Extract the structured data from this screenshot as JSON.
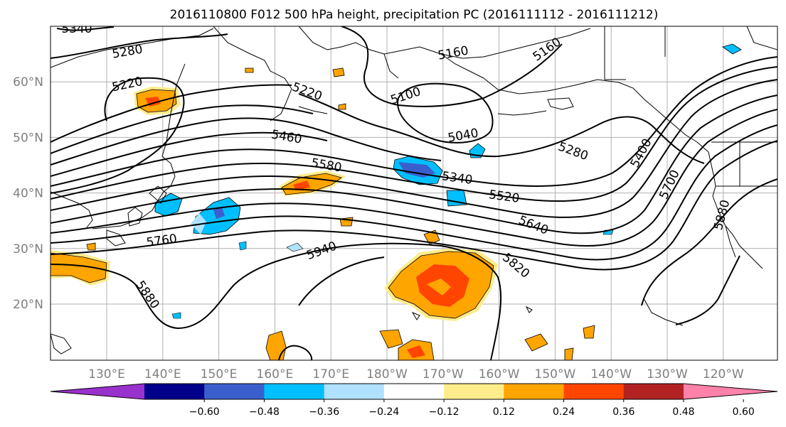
{
  "title": "2016110800 F012 500 hPa height, precipitation PC (2016111112 - 2016111212)",
  "axes": {
    "lon_labels": [
      "130°E",
      "140°E",
      "150°E",
      "160°E",
      "170°E",
      "180°W",
      "170°W",
      "160°W",
      "150°W",
      "140°W",
      "130°W",
      "120°W"
    ],
    "lat_labels": [
      "20°N",
      "30°N",
      "40°N",
      "50°N",
      "60°N"
    ]
  },
  "contour_labels": [
    "5340",
    "5280",
    "5220",
    "5160",
    "5160",
    "5100",
    "5040",
    "5220",
    "5460",
    "5580",
    "5340",
    "5520",
    "5280",
    "5400",
    "5700",
    "5640",
    "5760",
    "5940",
    "5820",
    "5880",
    "5880"
  ],
  "colorbar": {
    "ticks": [
      "−0.60",
      "−0.48",
      "−0.36",
      "−0.24",
      "−0.12",
      "0.12",
      "0.24",
      "0.36",
      "0.48",
      "0.60"
    ],
    "colors": [
      "#9932cc",
      "#00008b",
      "#3a5fcd",
      "#00bfff",
      "#b0e2ff",
      "#ffffff",
      "#ffec8b",
      "#ffa500",
      "#ff4500",
      "#b22222",
      "#ff82ab"
    ]
  },
  "chart_data": {
    "type": "heatmap",
    "title": "2016110800 F012 500 hPa height, precipitation PC (2016111112 - 2016111212)",
    "field": "500 hPa geopotential height contours with precipitation PC shading",
    "lon_range": [
      "120°E",
      "125°W"
    ],
    "lat_range": [
      "10°N",
      "70°N"
    ],
    "contour_levels": [
      5040,
      5100,
      5160,
      5220,
      5280,
      5340,
      5400,
      5460,
      5520,
      5580,
      5640,
      5700,
      5760,
      5820,
      5880,
      5940
    ],
    "shading_levels": [
      -0.6,
      -0.48,
      -0.36,
      -0.24,
      -0.12,
      0.12,
      0.24,
      0.36,
      0.48,
      0.6
    ],
    "grid": true
  }
}
